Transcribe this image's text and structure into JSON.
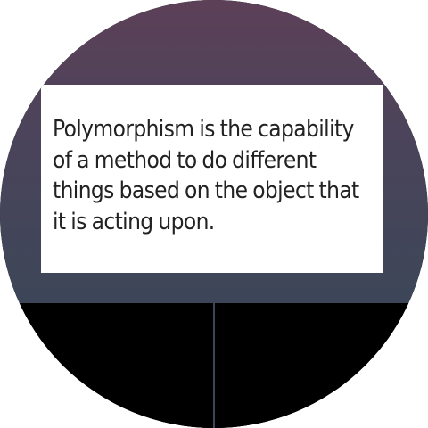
{
  "card": {
    "text": "Polymorphism is the capability of a method to do different things based on the object that it is acting upon."
  },
  "colors": {
    "gradient_top": "#5c4058",
    "gradient_bottom": "#3c4658",
    "card_background": "#ffffff",
    "text": "#222222",
    "bottom_background": "#000000"
  }
}
